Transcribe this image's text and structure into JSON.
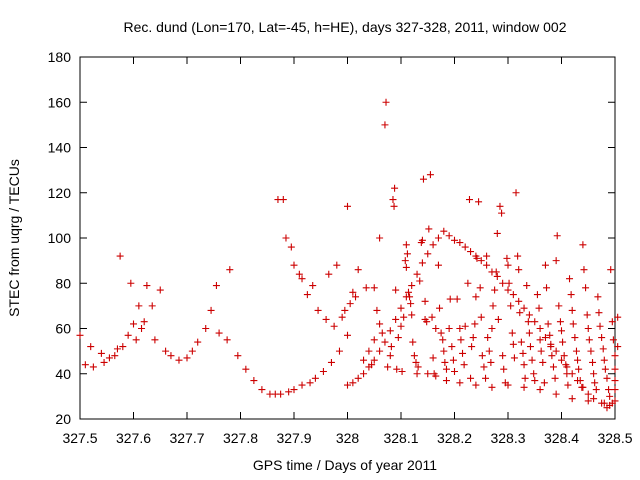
{
  "chart_data": {
    "type": "scatter",
    "title": "Rec. dund (Lon=170, Lat=-45, h=HE), days 327-328, 2011, window 002",
    "xlabel": "GPS time / Days of year 2011",
    "ylabel": "STEC from uqrg / TECUs",
    "xlim": [
      327.5,
      328.5
    ],
    "ylim": [
      20,
      180
    ],
    "xticks": [
      327.5,
      327.6,
      327.7,
      327.8,
      327.9,
      328,
      328.1,
      328.2,
      328.3,
      328.4,
      328.5
    ],
    "xtick_labels": [
      "327.5",
      "327.6",
      "327.7",
      "327.8",
      "327.9",
      "328",
      "328.1",
      "328.2",
      "328.3",
      "328.4",
      "328.5"
    ],
    "yticks": [
      20,
      40,
      60,
      80,
      100,
      120,
      140,
      160,
      180
    ],
    "ytick_labels": [
      "20",
      "40",
      "60",
      "80",
      "100",
      "120",
      "140",
      "160",
      "180"
    ],
    "grid": false,
    "legend": "none",
    "marker": "plus",
    "color": "#cc0000",
    "points": [
      [
        327.5,
        57
      ],
      [
        327.51,
        44
      ],
      [
        327.52,
        52
      ],
      [
        327.525,
        43
      ],
      [
        327.54,
        49
      ],
      [
        327.545,
        45
      ],
      [
        327.555,
        47
      ],
      [
        327.565,
        48
      ],
      [
        327.57,
        51
      ],
      [
        327.575,
        92
      ],
      [
        327.58,
        52
      ],
      [
        327.59,
        57
      ],
      [
        327.595,
        80
      ],
      [
        327.6,
        62
      ],
      [
        327.605,
        55
      ],
      [
        327.61,
        70
      ],
      [
        327.615,
        60
      ],
      [
        327.62,
        63
      ],
      [
        327.625,
        79
      ],
      [
        327.635,
        70
      ],
      [
        327.64,
        55
      ],
      [
        327.65,
        77
      ],
      [
        327.66,
        50
      ],
      [
        327.67,
        48
      ],
      [
        327.685,
        46
      ],
      [
        327.7,
        47
      ],
      [
        327.71,
        50
      ],
      [
        327.72,
        54
      ],
      [
        327.735,
        60
      ],
      [
        327.745,
        68
      ],
      [
        327.755,
        79
      ],
      [
        327.76,
        58
      ],
      [
        327.775,
        55
      ],
      [
        327.78,
        86
      ],
      [
        327.795,
        48
      ],
      [
        327.81,
        42
      ],
      [
        327.825,
        37
      ],
      [
        327.84,
        33
      ],
      [
        327.855,
        31
      ],
      [
        327.865,
        31
      ],
      [
        327.87,
        117
      ],
      [
        327.875,
        31
      ],
      [
        327.88,
        117
      ],
      [
        327.885,
        100
      ],
      [
        327.89,
        32
      ],
      [
        327.895,
        96
      ],
      [
        327.9,
        88
      ],
      [
        327.9,
        33
      ],
      [
        327.91,
        84
      ],
      [
        327.915,
        82
      ],
      [
        327.915,
        35
      ],
      [
        327.925,
        75
      ],
      [
        327.93,
        36
      ],
      [
        327.935,
        79
      ],
      [
        327.94,
        38
      ],
      [
        327.945,
        68
      ],
      [
        327.955,
        41
      ],
      [
        327.96,
        64
      ],
      [
        327.965,
        84
      ],
      [
        327.97,
        45
      ],
      [
        327.975,
        61
      ],
      [
        327.98,
        88
      ],
      [
        327.985,
        50
      ],
      [
        327.99,
        65
      ],
      [
        327.995,
        68
      ],
      [
        328.0,
        57
      ],
      [
        328.0,
        114
      ],
      [
        328.005,
        71
      ],
      [
        328.01,
        76
      ],
      [
        328.015,
        74
      ],
      [
        328.02,
        86
      ],
      [
        328.03,
        46
      ],
      [
        328.035,
        78
      ],
      [
        328.04,
        50
      ],
      [
        328.045,
        44
      ],
      [
        328.05,
        55
      ],
      [
        328.055,
        68
      ],
      [
        328.06,
        62
      ],
      [
        328.065,
        58
      ],
      [
        328.07,
        150
      ],
      [
        328.072,
        160
      ],
      [
        328.075,
        43
      ],
      [
        328.08,
        48
      ],
      [
        328.082,
        52
      ],
      [
        328.085,
        117
      ],
      [
        328.087,
        114
      ],
      [
        328.088,
        122
      ],
      [
        328.09,
        77
      ],
      [
        328.092,
        42
      ],
      [
        328.095,
        56
      ],
      [
        328.1,
        61
      ],
      [
        328.102,
        41
      ],
      [
        328.105,
        65
      ],
      [
        328.108,
        90
      ],
      [
        328.11,
        87
      ],
      [
        328.112,
        93
      ],
      [
        328.114,
        76
      ],
      [
        328.116,
        74
      ],
      [
        328.118,
        71
      ],
      [
        328.12,
        66
      ],
      [
        328.122,
        54
      ],
      [
        328.125,
        48
      ],
      [
        328.128,
        45
      ],
      [
        328.13,
        40
      ],
      [
        328.132,
        43
      ],
      [
        328.135,
        81
      ],
      [
        328.138,
        98
      ],
      [
        328.14,
        99
      ],
      [
        328.142,
        126
      ],
      [
        328.145,
        64
      ],
      [
        328.148,
        63
      ],
      [
        328.15,
        40
      ],
      [
        328.152,
        104
      ],
      [
        328.155,
        128
      ],
      [
        328.158,
        65
      ],
      [
        328.16,
        47
      ],
      [
        328.162,
        40
      ],
      [
        328.165,
        39
      ],
      [
        328.17,
        88
      ],
      [
        328.172,
        69
      ],
      [
        328.175,
        58
      ],
      [
        328.178,
        55
      ],
      [
        328.18,
        50
      ],
      [
        328.182,
        45
      ],
      [
        328.185,
        42
      ],
      [
        328.19,
        60
      ],
      [
        328.192,
        73
      ],
      [
        328.195,
        52
      ],
      [
        328.198,
        46
      ],
      [
        328.2,
        41
      ],
      [
        328.205,
        73
      ],
      [
        328.21,
        60
      ],
      [
        328.212,
        55
      ],
      [
        328.215,
        49
      ],
      [
        328.218,
        44
      ],
      [
        328.22,
        61
      ],
      [
        328.225,
        80
      ],
      [
        328.228,
        117
      ],
      [
        328.23,
        38
      ],
      [
        328.232,
        52
      ],
      [
        328.235,
        56
      ],
      [
        328.238,
        62
      ],
      [
        328.24,
        74
      ],
      [
        328.242,
        91
      ],
      [
        328.245,
        116
      ],
      [
        328.248,
        78
      ],
      [
        328.25,
        65
      ],
      [
        328.252,
        48
      ],
      [
        328.255,
        43
      ],
      [
        328.258,
        38
      ],
      [
        328.26,
        92
      ],
      [
        328.262,
        56
      ],
      [
        328.265,
        50
      ],
      [
        328.268,
        45
      ],
      [
        328.27,
        60
      ],
      [
        328.272,
        70
      ],
      [
        328.275,
        77
      ],
      [
        328.278,
        85
      ],
      [
        328.28,
        102
      ],
      [
        328.282,
        64
      ],
      [
        328.285,
        114
      ],
      [
        328.288,
        111
      ],
      [
        328.29,
        48
      ],
      [
        328.292,
        42
      ],
      [
        328.295,
        36
      ],
      [
        328.298,
        91
      ],
      [
        328.3,
        88
      ],
      [
        328.302,
        80
      ],
      [
        328.305,
        70
      ],
      [
        328.308,
        58
      ],
      [
        328.31,
        53
      ],
      [
        328.312,
        47
      ],
      [
        328.315,
        120
      ],
      [
        328.318,
        92
      ],
      [
        328.32,
        86
      ],
      [
        328.322,
        67
      ],
      [
        328.325,
        54
      ],
      [
        328.328,
        49
      ],
      [
        328.33,
        44
      ],
      [
        328.332,
        38
      ],
      [
        328.335,
        79
      ],
      [
        328.338,
        63
      ],
      [
        328.34,
        58
      ],
      [
        328.342,
        52
      ],
      [
        328.345,
        46
      ],
      [
        328.348,
        40
      ],
      [
        328.35,
        37
      ],
      [
        328.355,
        75
      ],
      [
        328.358,
        69
      ],
      [
        328.36,
        55
      ],
      [
        328.362,
        50
      ],
      [
        328.365,
        45
      ],
      [
        328.368,
        36
      ],
      [
        328.37,
        88
      ],
      [
        328.372,
        78
      ],
      [
        328.375,
        62
      ],
      [
        328.378,
        57
      ],
      [
        328.38,
        52
      ],
      [
        328.382,
        48
      ],
      [
        328.385,
        43
      ],
      [
        328.388,
        38
      ],
      [
        328.39,
        90
      ],
      [
        328.392,
        101
      ],
      [
        328.395,
        70
      ],
      [
        328.398,
        63
      ],
      [
        328.4,
        59
      ],
      [
        328.402,
        54
      ],
      [
        328.405,
        48
      ],
      [
        328.408,
        44
      ],
      [
        328.41,
        40
      ],
      [
        328.412,
        35
      ],
      [
        328.415,
        82
      ],
      [
        328.418,
        75
      ],
      [
        328.42,
        68
      ],
      [
        328.422,
        62
      ],
      [
        328.425,
        56
      ],
      [
        328.428,
        50
      ],
      [
        328.43,
        46
      ],
      [
        328.432,
        42
      ],
      [
        328.435,
        37
      ],
      [
        328.438,
        34
      ],
      [
        328.44,
        97
      ],
      [
        328.442,
        86
      ],
      [
        328.445,
        78
      ],
      [
        328.448,
        66
      ],
      [
        328.45,
        60
      ],
      [
        328.452,
        55
      ],
      [
        328.455,
        50
      ],
      [
        328.458,
        45
      ],
      [
        328.46,
        40
      ],
      [
        328.462,
        36
      ],
      [
        328.465,
        33
      ],
      [
        328.468,
        74
      ],
      [
        328.47,
        67
      ],
      [
        328.472,
        61
      ],
      [
        328.475,
        56
      ],
      [
        328.478,
        51
      ],
      [
        328.48,
        46
      ],
      [
        328.482,
        42
      ],
      [
        328.485,
        38
      ],
      [
        328.488,
        33
      ],
      [
        328.49,
        30
      ],
      [
        328.492,
        86
      ],
      [
        328.495,
        63
      ],
      [
        328.497,
        55
      ],
      [
        328.5,
        48
      ],
      [
        328.5,
        42
      ],
      [
        328.5,
        37
      ],
      [
        328.5,
        33
      ],
      [
        328.5,
        28
      ],
      [
        328.495,
        27
      ],
      [
        328.49,
        26
      ],
      [
        328.485,
        25
      ],
      [
        328.475,
        27
      ],
      [
        328.46,
        29
      ],
      [
        328.45,
        31
      ],
      [
        328.44,
        34
      ],
      [
        328.43,
        37
      ],
      [
        328.42,
        40
      ],
      [
        328.41,
        43
      ],
      [
        328.4,
        46
      ],
      [
        328.39,
        50
      ],
      [
        328.38,
        53
      ],
      [
        328.37,
        56
      ],
      [
        328.36,
        60
      ],
      [
        328.35,
        63
      ],
      [
        328.34,
        66
      ],
      [
        328.33,
        69
      ],
      [
        328.32,
        72
      ],
      [
        328.31,
        75
      ],
      [
        328.3,
        77
      ],
      [
        328.29,
        80
      ],
      [
        328.28,
        83
      ],
      [
        328.27,
        85
      ],
      [
        328.26,
        88
      ],
      [
        328.25,
        90
      ],
      [
        328.24,
        92
      ],
      [
        328.23,
        94
      ],
      [
        328.22,
        96
      ],
      [
        328.21,
        98
      ],
      [
        328.2,
        99
      ],
      [
        328.19,
        101
      ],
      [
        328.18,
        103
      ],
      [
        328.17,
        100
      ],
      [
        328.16,
        97
      ],
      [
        328.15,
        93
      ],
      [
        328.14,
        89
      ],
      [
        328.13,
        84
      ],
      [
        328.12,
        79
      ],
      [
        328.11,
        74
      ],
      [
        328.1,
        69
      ],
      [
        328.09,
        64
      ],
      [
        328.08,
        59
      ],
      [
        328.07,
        54
      ],
      [
        328.06,
        50
      ],
      [
        328.05,
        46
      ],
      [
        328.04,
        43
      ],
      [
        328.03,
        40
      ],
      [
        328.02,
        38
      ],
      [
        328.01,
        36
      ],
      [
        328.0,
        35
      ],
      [
        328.05,
        78
      ],
      [
        328.06,
        100
      ],
      [
        328.11,
        97
      ],
      [
        328.145,
        72
      ],
      [
        328.165,
        60
      ],
      [
        328.185,
        37
      ],
      [
        328.21,
        36
      ],
      [
        328.24,
        35
      ],
      [
        328.27,
        34
      ],
      [
        328.3,
        35
      ],
      [
        328.33,
        34
      ],
      [
        328.36,
        33
      ],
      [
        328.39,
        31
      ],
      [
        328.42,
        29
      ],
      [
        328.45,
        28
      ],
      [
        328.48,
        27
      ],
      [
        328.505,
        65
      ],
      [
        328.505,
        52
      ]
    ]
  }
}
